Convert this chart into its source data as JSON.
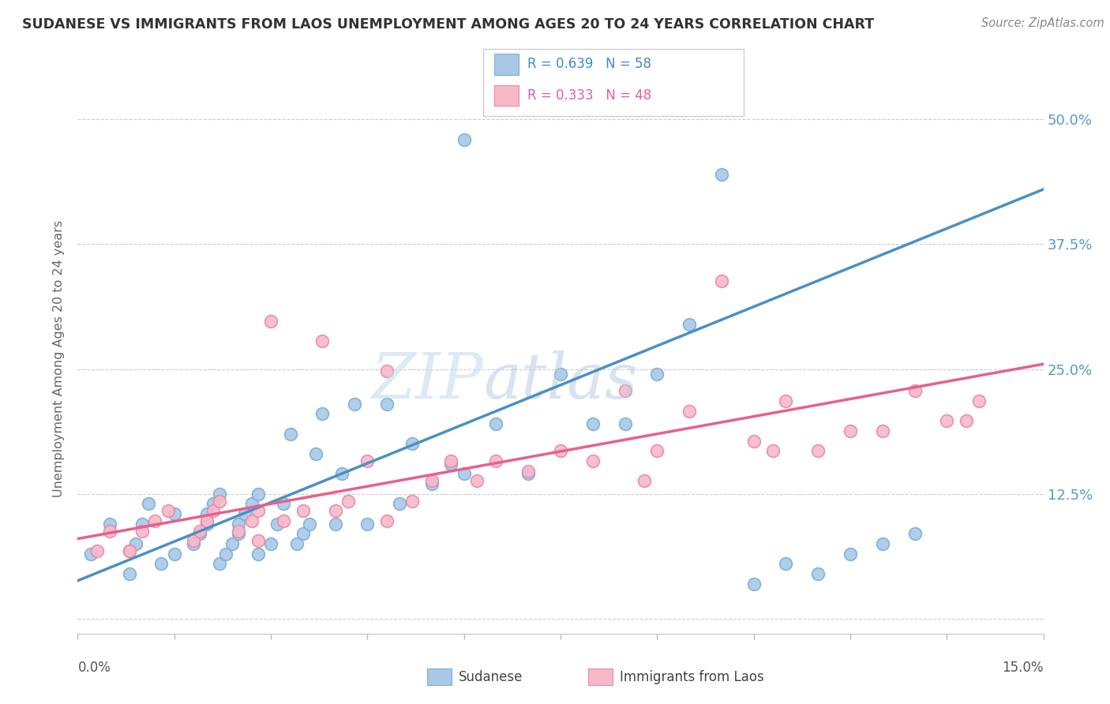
{
  "title": "SUDANESE VS IMMIGRANTS FROM LAOS UNEMPLOYMENT AMONG AGES 20 TO 24 YEARS CORRELATION CHART",
  "source_text": "Source: ZipAtlas.com",
  "ylabel": "Unemployment Among Ages 20 to 24 years",
  "yticks": [
    0.0,
    0.125,
    0.25,
    0.375,
    0.5
  ],
  "ytick_labels": [
    "",
    "12.5%",
    "25.0%",
    "37.5%",
    "50.0%"
  ],
  "xmin": 0.0,
  "xmax": 0.15,
  "ymin": -0.015,
  "ymax": 0.535,
  "legend1_label": "R = 0.639   N = 58",
  "legend2_label": "R = 0.333   N = 48",
  "series1_color": "#a8c8e8",
  "series2_color": "#f8b8c8",
  "series1_edge": "#7bafd4",
  "series2_edge": "#e888a8",
  "line1_color": "#4a90c4",
  "line2_color": "#e8608a",
  "watermark_zip": "ZIP",
  "watermark_atlas": "atlas",
  "sudanese_x": [
    0.002,
    0.008,
    0.009,
    0.01,
    0.011,
    0.013,
    0.015,
    0.018,
    0.019,
    0.02,
    0.02,
    0.021,
    0.022,
    0.022,
    0.023,
    0.024,
    0.025,
    0.025,
    0.026,
    0.027,
    0.028,
    0.028,
    0.03,
    0.031,
    0.032,
    0.033,
    0.034,
    0.035,
    0.036,
    0.037,
    0.038,
    0.04,
    0.041,
    0.043,
    0.045,
    0.048,
    0.05,
    0.052,
    0.055,
    0.058,
    0.06,
    0.065,
    0.07,
    0.075,
    0.08,
    0.085,
    0.09,
    0.095,
    0.1,
    0.105,
    0.11,
    0.115,
    0.12,
    0.125,
    0.13,
    0.005,
    0.015,
    0.06
  ],
  "sudanese_y": [
    0.065,
    0.045,
    0.075,
    0.095,
    0.115,
    0.055,
    0.065,
    0.075,
    0.085,
    0.095,
    0.105,
    0.115,
    0.125,
    0.055,
    0.065,
    0.075,
    0.085,
    0.095,
    0.105,
    0.115,
    0.125,
    0.065,
    0.075,
    0.095,
    0.115,
    0.185,
    0.075,
    0.085,
    0.095,
    0.165,
    0.205,
    0.095,
    0.145,
    0.215,
    0.095,
    0.215,
    0.115,
    0.175,
    0.135,
    0.155,
    0.145,
    0.195,
    0.145,
    0.245,
    0.195,
    0.195,
    0.245,
    0.295,
    0.445,
    0.035,
    0.055,
    0.045,
    0.065,
    0.075,
    0.085,
    0.095,
    0.105,
    0.48
  ],
  "laos_x": [
    0.003,
    0.005,
    0.008,
    0.01,
    0.012,
    0.014,
    0.018,
    0.019,
    0.02,
    0.021,
    0.022,
    0.025,
    0.027,
    0.028,
    0.03,
    0.032,
    0.035,
    0.038,
    0.04,
    0.042,
    0.045,
    0.048,
    0.052,
    0.055,
    0.058,
    0.062,
    0.065,
    0.07,
    0.075,
    0.08,
    0.085,
    0.09,
    0.095,
    0.1,
    0.105,
    0.11,
    0.115,
    0.12,
    0.125,
    0.13,
    0.135,
    0.14,
    0.008,
    0.028,
    0.048,
    0.088,
    0.108,
    0.138
  ],
  "laos_y": [
    0.068,
    0.088,
    0.068,
    0.088,
    0.098,
    0.108,
    0.078,
    0.088,
    0.098,
    0.108,
    0.118,
    0.088,
    0.098,
    0.108,
    0.298,
    0.098,
    0.108,
    0.278,
    0.108,
    0.118,
    0.158,
    0.248,
    0.118,
    0.138,
    0.158,
    0.138,
    0.158,
    0.148,
    0.168,
    0.158,
    0.228,
    0.168,
    0.208,
    0.338,
    0.178,
    0.218,
    0.168,
    0.188,
    0.188,
    0.228,
    0.198,
    0.218,
    0.068,
    0.078,
    0.098,
    0.138,
    0.168,
    0.198
  ],
  "line1_x0": 0.0,
  "line1_y0": 0.038,
  "line1_x1": 0.15,
  "line1_y1": 0.43,
  "line2_x0": 0.0,
  "line2_y0": 0.08,
  "line2_x1": 0.15,
  "line2_y1": 0.255
}
